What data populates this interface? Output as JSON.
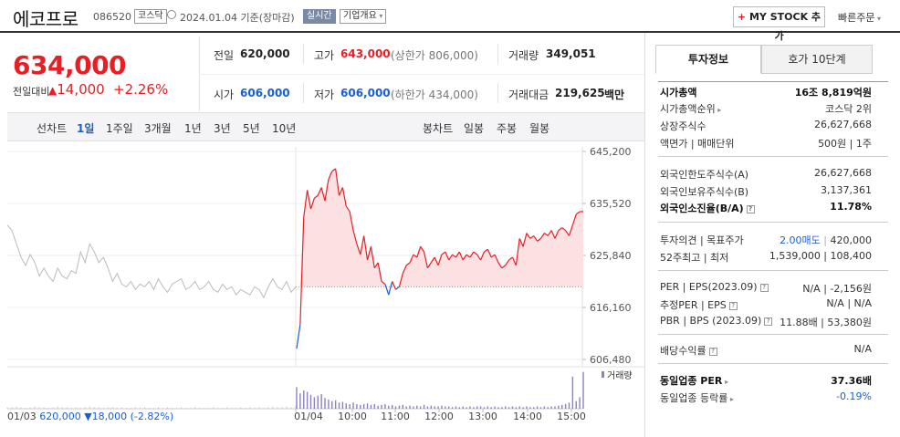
{
  "header": {
    "name": "에코프로",
    "code": "086520",
    "market": "코스닥",
    "date_info": "2024.01.04  기준(장마감)",
    "live_badge": "실시간",
    "overview_label": "기업개요",
    "mystock_label": "MY STOCK 추가",
    "quick_order": "빠른주문"
  },
  "price": {
    "current": "634,000",
    "change_label": "전일대비",
    "change": "14,000",
    "percent": "+2.26%"
  },
  "quote": {
    "prev_label": "전일",
    "prev": "620,000",
    "high_label": "고가",
    "high": "643,000",
    "upper_limit": "(상한가 806,000)",
    "volume_label": "거래량",
    "volume": "349,051",
    "open_label": "시가",
    "open": "606,000",
    "low_label": "저가",
    "low": "606,000",
    "lower_limit": "(하한가 434,000)",
    "amount_label": "거래대금",
    "amount": "219,625",
    "amount_unit": "백만"
  },
  "tabs": {
    "line_chart": "선차트",
    "periods": [
      "1일",
      "1주일",
      "3개월",
      "1년",
      "3년",
      "5년",
      "10년"
    ],
    "candle_chart": "봉차트",
    "candles": [
      "일봉",
      "주봉",
      "월봉"
    ]
  },
  "chart_data": {
    "type": "line",
    "y_ticks": [
      "645,200",
      "635,520",
      "625,840",
      "616,160",
      "606,480"
    ],
    "ylim": [
      606480,
      645200
    ],
    "x_ticks": [
      "01/04",
      "10:00",
      "11:00",
      "12:00",
      "13:00",
      "14:00",
      "15:00"
    ],
    "prev_day": {
      "date": "01/03",
      "close": "620,000",
      "change": "18,000",
      "percent": "(-2.82%)"
    },
    "prev_close_value": 620000,
    "volume_label": "거래량",
    "colors": {
      "up": "#e81e25",
      "down": "#1a5fd1",
      "prev": "#bbbbbb",
      "fill": "#fbe1e1"
    },
    "series": [
      {
        "name": "01/03",
        "values": [
          631500,
          630500,
          628000,
          625500,
          624000,
          626000,
          624500,
          622000,
          623500,
          622000,
          621000,
          623500,
          622000,
          621500,
          623000,
          622500,
          626500,
          624500,
          628000,
          626500,
          624500,
          625500,
          623500,
          621000,
          622500,
          620500,
          620000,
          621000,
          619500,
          620500,
          620000,
          621000,
          619500,
          621500,
          620000,
          619000,
          620500,
          621000,
          621500,
          619500,
          620000,
          621000,
          619500,
          620000,
          621000,
          619500,
          619000,
          620500,
          619500,
          620000,
          618500,
          619500,
          619000,
          618500,
          620000,
          619500,
          618000,
          620000,
          621500,
          620000,
          619500,
          621000,
          619000,
          620000
        ]
      },
      {
        "name": "01/04",
        "values": [
          608500,
          613000,
          633000,
          638000,
          634500,
          636500,
          637000,
          638500,
          636000,
          640000,
          641500,
          642000,
          637000,
          638500,
          635000,
          634000,
          630500,
          628000,
          626000,
          629500,
          625000,
          627500,
          623500,
          624500,
          621000,
          620500,
          618500,
          621000,
          619500,
          620000,
          622500,
          624000,
          624500,
          626000,
          625500,
          627500,
          626500,
          623500,
          624500,
          625500,
          624000,
          626000,
          626500,
          625000,
          626000,
          625500,
          626500,
          625000,
          626000,
          625500,
          626500,
          626000,
          625000,
          626500,
          627000,
          625500,
          626000,
          624500,
          623500,
          624000,
          625000,
          625500,
          624000,
          629000,
          627500,
          630000,
          629000,
          629500,
          628500,
          629000,
          630000,
          629500,
          630500,
          629000,
          630500,
          631000,
          630500,
          629500,
          631500,
          633500,
          634000,
          634000
        ]
      }
    ],
    "volume": {
      "prev": [
        2,
        2,
        3,
        2,
        1,
        2,
        3,
        2,
        2,
        1,
        2,
        3,
        2,
        2,
        1,
        2,
        1,
        2,
        3,
        2,
        2,
        1,
        2,
        2,
        1,
        2,
        1,
        1,
        2,
        1,
        2,
        1,
        1,
        2,
        1,
        2,
        1,
        1,
        2,
        1,
        1,
        2,
        1,
        1,
        1,
        2,
        1,
        1,
        2,
        1,
        1,
        2,
        1,
        2,
        1,
        2,
        1,
        2,
        3,
        2,
        2,
        3,
        2,
        4
      ],
      "today": [
        28,
        20,
        24,
        22,
        18,
        15,
        17,
        19,
        14,
        12,
        10,
        11,
        8,
        9,
        7,
        6,
        8,
        6,
        5,
        6,
        7,
        5,
        6,
        4,
        5,
        6,
        4,
        5,
        3,
        4,
        5,
        3,
        4,
        3,
        4,
        3,
        5,
        3,
        4,
        3,
        3,
        4,
        3,
        3,
        2,
        3,
        2,
        3,
        2,
        3,
        2,
        3,
        3,
        2,
        3,
        2,
        3,
        2,
        2,
        3,
        2,
        3,
        2,
        3,
        2,
        3,
        2,
        2,
        3,
        2,
        3,
        2,
        3,
        3,
        4,
        5,
        6,
        8,
        42,
        10,
        15,
        48
      ]
    }
  },
  "info": {
    "tab_invest": "투자정보",
    "tab_orderbook": "호가 10단계",
    "rows": [
      {
        "k": "시가총액",
        "v": "16조 8,819억원",
        "bold": true
      },
      {
        "k": "시가총액순위",
        "v": "코스닥 2위"
      },
      {
        "k": "상장주식수",
        "v": "26,627,668"
      },
      {
        "k": "액면가 | 매매단위",
        "v": "500원 | 1주"
      },
      {
        "k": "외국인한도주식수(A)",
        "v": "26,627,668"
      },
      {
        "k": "외국인보유주식수(B)",
        "v": "3,137,361"
      },
      {
        "k": "외국인소진율(B/A)",
        "v": "11.78%",
        "bold": true
      },
      {
        "k": "투자의견 | 목표주가",
        "v": "420,000",
        "v_pre": "2.00매도"
      },
      {
        "k": "52주최고 | 최저",
        "v": "1,539,000 | 108,400"
      },
      {
        "k": "PER | EPS(2023.09)",
        "v": "N/A | -2,156원"
      },
      {
        "k": "추정PER | EPS",
        "v": "N/A | N/A"
      },
      {
        "k": "PBR | BPS (2023.09)",
        "v": "11.88배 | 53,380원"
      },
      {
        "k": "배당수익률",
        "v": "N/A"
      },
      {
        "k": "동일업종 PER",
        "v": "37.36배",
        "bold": true
      },
      {
        "k": "동일업종 등락률",
        "v": "-0.19%"
      }
    ]
  }
}
